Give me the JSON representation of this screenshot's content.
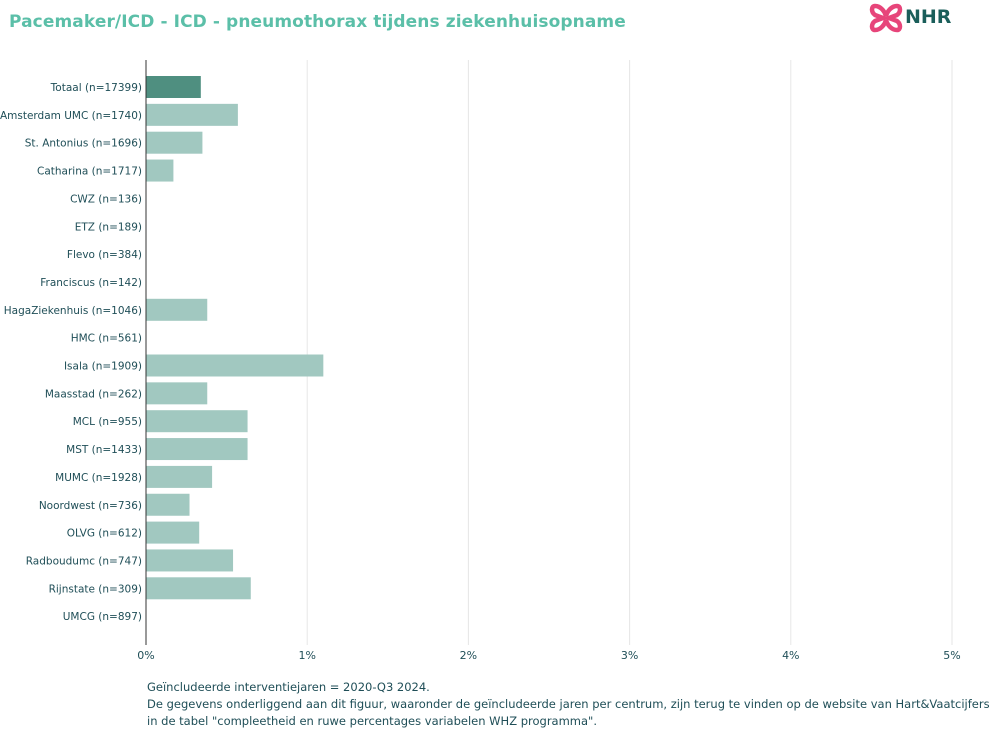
{
  "header": {
    "title": "Pacemaker/ICD - ICD - pneumothorax tijdens ziekenhuisopname",
    "logo_text": "NHR"
  },
  "colors": {
    "highlight": "#4f8f80",
    "bar": "#a1c8c0",
    "text": "#1f4e57",
    "grid": "#e6e6e6",
    "title": "#5bbfa8",
    "logo_icon": "#e7457a"
  },
  "chart_data": {
    "type": "bar",
    "orientation": "horizontal",
    "categories": [
      "Totaal (n=17399)",
      "Amsterdam UMC (n=1740)",
      "St. Antonius (n=1696)",
      "Catharina (n=1717)",
      "CWZ (n=136)",
      "ETZ (n=189)",
      "Flevo (n=384)",
      "Franciscus (n=142)",
      "HagaZiekenhuis (n=1046)",
      "HMC (n=561)",
      "Isala (n=1909)",
      "Maasstad (n=262)",
      "MCL (n=955)",
      "MST (n=1433)",
      "MUMC (n=1928)",
      "Noordwest (n=736)",
      "OLVG (n=612)",
      "Radboudumc (n=747)",
      "Rijnstate (n=309)",
      "UMCG (n=897)"
    ],
    "values": [
      0.34,
      0.57,
      0.35,
      0.17,
      0,
      0,
      0,
      0,
      0.38,
      0,
      1.1,
      0.38,
      0.63,
      0.63,
      0.41,
      0.27,
      0.33,
      0.54,
      0.65,
      0
    ],
    "highlight_index": 0,
    "xlim": [
      0,
      5
    ],
    "x_ticks": [
      "0%",
      "1%",
      "2%",
      "3%",
      "4%",
      "5%"
    ],
    "grid": true
  },
  "footnote": {
    "line1": "Geïncludeerde interventiejaren = 2020-Q3 2024.",
    "line2": "De gegevens onderliggend aan dit figuur, waaronder de geïncludeerde jaren per centrum, zijn terug te vinden op de website van Hart&Vaatcijfers",
    "line3": "in de tabel \"compleetheid en ruwe percentages variabelen WHZ programma\"."
  }
}
